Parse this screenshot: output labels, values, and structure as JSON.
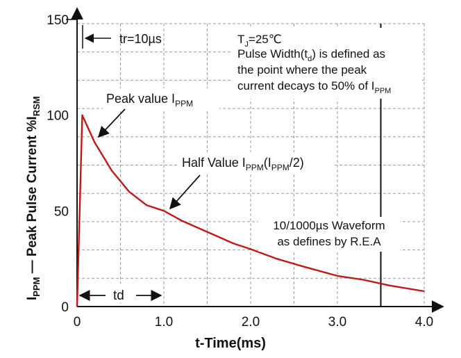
{
  "chart_data": {
    "type": "line",
    "title": "",
    "xlabel": "t-Time(ms)",
    "ylabel": "I_PPM — Peak Pulse Current %I_RSM",
    "xlim": [
      0,
      4.0
    ],
    "ylim": [
      0,
      150
    ],
    "x_ticks": [
      "0",
      "1.0",
      "2.0",
      "3.0",
      "4.0"
    ],
    "y_ticks": [
      "0",
      "50",
      "100",
      "150"
    ],
    "grid": true,
    "series": [
      {
        "name": "10/1000µs waveform",
        "color": "#c01818",
        "x": [
          0,
          0.06,
          0.2,
          0.4,
          0.6,
          0.8,
          1.0,
          1.2,
          1.5,
          1.8,
          2.0,
          2.3,
          2.6,
          3.0,
          3.3,
          3.6,
          4.0
        ],
        "y": [
          0,
          100,
          86,
          71,
          60,
          53,
          50,
          45,
          39,
          33,
          30,
          25,
          21,
          16,
          14,
          11,
          8
        ]
      }
    ],
    "td_marker_x": 3.5,
    "annotations": {
      "tr": "tr=10µs",
      "tj": "T",
      "tj_sub": "J",
      "tj_rest": "=25℃",
      "pw1": "Pulse Width(t",
      "pw1_sub": "d",
      "pw1_rest": ") is defined as",
      "pw2": "the point where the peak",
      "pw3": "current decays to 50% of I",
      "pw3_sub": "PPM",
      "peak": "Peak value I",
      "peak_sub": "PPM",
      "half": "Half Value I",
      "half_sub": "PPM",
      "half_mid": "(I",
      "half_sub2": "PPM",
      "half_end": "/2)",
      "wave1": "10/1000µs Waveform",
      "wave2": "as defines by R.E.A",
      "td": "td"
    },
    "y_axis_label_parts": {
      "i": "I",
      "ppm": "PPM",
      "dash": " — Peak Pulse Current  %I",
      "rsm": "RSM"
    },
    "x_axis_label": "t-Time(ms)"
  }
}
